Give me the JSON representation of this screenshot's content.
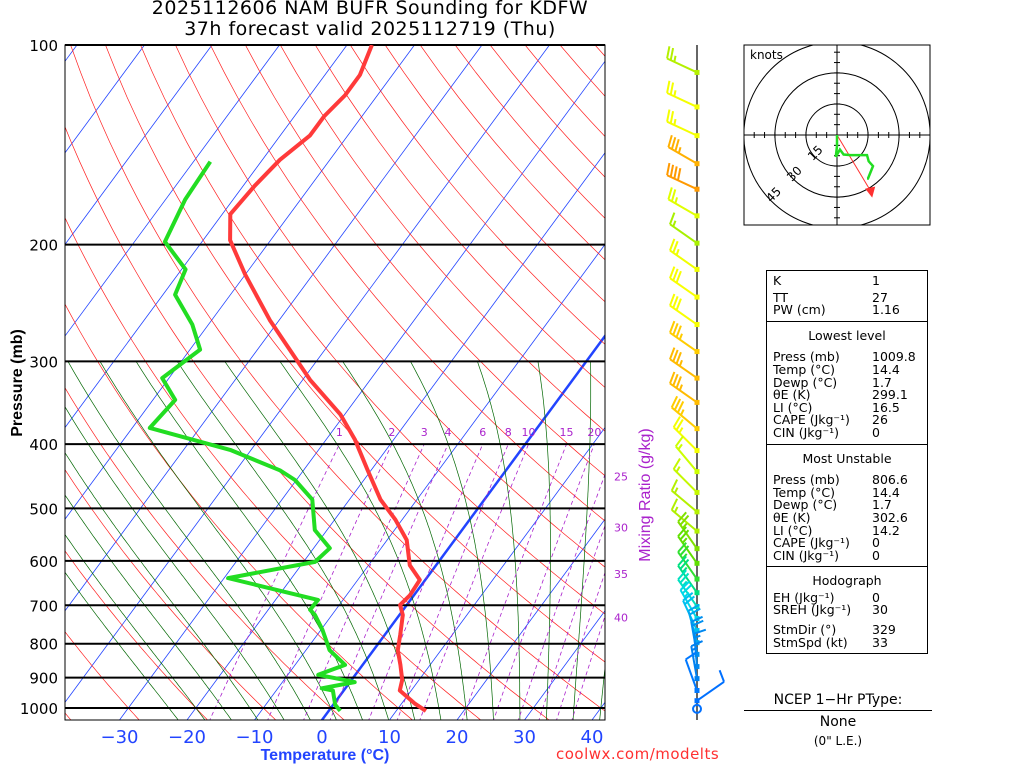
{
  "header": {
    "line1": "2025112606 NAM BUFR Sounding for KDFW",
    "line2": "37h forecast valid 2025112719 (Thu)"
  },
  "credit": "coolwx.com/modelts",
  "chart_data": {
    "type": "skew-t",
    "title": "2025112606 NAM BUFR Sounding for KDFW",
    "xlabel": "Temperature (°C)",
    "ylabel": "Pressure (mb)",
    "y2label": "Mixing Ratio (g/kg)",
    "pressure_ticks": [
      100,
      200,
      300,
      400,
      500,
      600,
      700,
      800,
      900,
      1000
    ],
    "temperature_ticks": [
      -30,
      -20,
      -10,
      0,
      10,
      20,
      30,
      40
    ],
    "temperature_tick_labels": [
      "−30",
      "−20",
      "−10",
      "0",
      "10",
      "20",
      "30",
      "40"
    ],
    "mixing_ratio_lines": [
      1,
      2,
      3,
      4,
      6,
      8,
      10,
      15,
      20,
      25,
      30,
      35,
      40
    ],
    "plim": [
      100,
      1043
    ],
    "colors": {
      "temperature": "#ff3a3a",
      "dewpoint": "#22dd22",
      "isotherm": "#2244ff",
      "dry_adiabat": "#ff2020",
      "moist_adiabat": "#006600",
      "mixing_ratio": "#aa22cc"
    },
    "temperature": [
      [
        1010,
        14.4
      ],
      [
        984,
        11.9
      ],
      [
        941,
        8.3
      ],
      [
        907,
        7.5
      ],
      [
        861,
        5.6
      ],
      [
        818,
        3.6
      ],
      [
        776,
        2.3
      ],
      [
        724,
        0.5
      ],
      [
        699,
        -1.0
      ],
      [
        676,
        -0.6
      ],
      [
        641,
        -0.8
      ],
      [
        609,
        -3.9
      ],
      [
        558,
        -7.1
      ],
      [
        520,
        -11.0
      ],
      [
        485,
        -15.4
      ],
      [
        438,
        -20.5
      ],
      [
        394,
        -25.7
      ],
      [
        361,
        -30.6
      ],
      [
        320,
        -38.9
      ],
      [
        260,
        -51.4
      ],
      [
        222,
        -60.0
      ],
      [
        197,
        -66.0
      ],
      [
        180,
        -68.8
      ],
      [
        163,
        -68.3
      ],
      [
        149,
        -67.4
      ],
      [
        137,
        -65.6
      ],
      [
        128,
        -65.6
      ],
      [
        119,
        -64.8
      ],
      [
        111,
        -64.8
      ],
      [
        100,
        -66.3
      ]
    ],
    "dewpoint": [
      [
        1010,
        1.7
      ],
      [
        989,
        0.3
      ],
      [
        941,
        -1.6
      ],
      [
        934,
        -3.5
      ],
      [
        914,
        0.7
      ],
      [
        891,
        -5.5
      ],
      [
        861,
        -2.6
      ],
      [
        818,
        -6.5
      ],
      [
        762,
        -9.8
      ],
      [
        724,
        -12.5
      ],
      [
        711,
        -13.8
      ],
      [
        687,
        -13.7
      ],
      [
        637,
        -29.4
      ],
      [
        602,
        -18.3
      ],
      [
        574,
        -17.6
      ],
      [
        539,
        -21.8
      ],
      [
        485,
        -25.5
      ],
      [
        453,
        -30.2
      ],
      [
        438,
        -33.5
      ],
      [
        408,
        -43.1
      ],
      [
        378,
        -57.4
      ],
      [
        343,
        -56.7
      ],
      [
        318,
        -61.0
      ],
      [
        288,
        -58.5
      ],
      [
        264,
        -62.4
      ],
      [
        238,
        -68.2
      ],
      [
        218,
        -69.4
      ],
      [
        198,
        -75.5
      ],
      [
        171,
        -77.1
      ],
      [
        150,
        -77.5
      ]
    ],
    "winds": [
      {
        "p": 110,
        "dir": 295,
        "spd": 25,
        "color": "#b4f000"
      },
      {
        "p": 124,
        "dir": 295,
        "spd": 25,
        "color": "#f4ff00"
      },
      {
        "p": 137,
        "dir": 295,
        "spd": 25,
        "color": "#f4ff00"
      },
      {
        "p": 151,
        "dir": 300,
        "spd": 35,
        "color": "#ffb000"
      },
      {
        "p": 165,
        "dir": 295,
        "spd": 40,
        "color": "#ff9900"
      },
      {
        "p": 181,
        "dir": 300,
        "spd": 25,
        "color": "#e0ff00"
      },
      {
        "p": 199,
        "dir": 305,
        "spd": 15,
        "color": "#a8f000"
      },
      {
        "p": 218,
        "dir": 305,
        "spd": 25,
        "color": "#f0ff00"
      },
      {
        "p": 240,
        "dir": 305,
        "spd": 30,
        "color": "#f8ff00"
      },
      {
        "p": 264,
        "dir": 305,
        "spd": 30,
        "color": "#f8ff00"
      },
      {
        "p": 290,
        "dir": 305,
        "spd": 35,
        "color": "#ffcc00"
      },
      {
        "p": 318,
        "dir": 305,
        "spd": 35,
        "color": "#ffbb00"
      },
      {
        "p": 346,
        "dir": 305,
        "spd": 35,
        "color": "#ffbb00"
      },
      {
        "p": 379,
        "dir": 310,
        "spd": 35,
        "color": "#ffcc00"
      },
      {
        "p": 409,
        "dir": 315,
        "spd": 25,
        "color": "#f4ff00"
      },
      {
        "p": 440,
        "dir": 320,
        "spd": 15,
        "color": "#ccff00"
      },
      {
        "p": 473,
        "dir": 315,
        "spd": 15,
        "color": "#c4f800"
      },
      {
        "p": 506,
        "dir": 310,
        "spd": 15,
        "color": "#b4f000"
      },
      {
        "p": 541,
        "dir": 310,
        "spd": 15,
        "color": "#b0f000"
      },
      {
        "p": 575,
        "dir": 325,
        "spd": 25,
        "color": "#80e000"
      },
      {
        "p": 605,
        "dir": 325,
        "spd": 25,
        "color": "#60e000"
      },
      {
        "p": 639,
        "dir": 325,
        "spd": 25,
        "color": "#30e030"
      },
      {
        "p": 670,
        "dir": 325,
        "spd": 25,
        "color": "#00e080"
      },
      {
        "p": 703,
        "dir": 325,
        "spd": 25,
        "color": "#00e0c0"
      },
      {
        "p": 733,
        "dir": 330,
        "spd": 25,
        "color": "#00d8e8"
      },
      {
        "p": 764,
        "dir": 335,
        "spd": 20,
        "color": "#00c0f0"
      },
      {
        "p": 797,
        "dir": 345,
        "spd": 20,
        "color": "#00a8f0"
      },
      {
        "p": 830,
        "dir": 350,
        "spd": 20,
        "color": "#0090f0"
      },
      {
        "p": 866,
        "dir": 355,
        "spd": 15,
        "color": "#0088f0"
      },
      {
        "p": 903,
        "dir": 350,
        "spd": 15,
        "color": "#0080f0"
      },
      {
        "p": 941,
        "dir": 340,
        "spd": 10,
        "color": "#0078ff"
      },
      {
        "p": 975,
        "dir": 55,
        "spd": 10,
        "color": "#0070ff"
      },
      {
        "p": 1003,
        "dir": 0,
        "spd": 0,
        "color": "#0070ff"
      }
    ],
    "hodograph": {
      "label": "knots",
      "rings": [
        15,
        30,
        45
      ],
      "ring_labels": [
        "15",
        "30",
        "45"
      ],
      "uv": [
        [
          0,
          0
        ],
        [
          0,
          -5.3
        ],
        [
          -0.6,
          -10.6
        ],
        [
          1.4,
          -7
        ],
        [
          3.2,
          -9.4
        ],
        [
          6.5,
          -9.7
        ],
        [
          14.5,
          -9.7
        ],
        [
          15.3,
          -12.7
        ],
        [
          17.4,
          -15
        ],
        [
          15,
          -21
        ],
        [
          14.5,
          -21
        ]
      ],
      "storm_motion_uv": [
        17.0,
        -28.3
      ]
    }
  },
  "stats": {
    "top": [
      {
        "k": "K",
        "v": "1"
      },
      {
        "k": "TT",
        "v": "27"
      },
      {
        "k": "PW (cm)",
        "v": "1.16"
      }
    ],
    "lowest": {
      "title": "Lowest level",
      "rows": [
        {
          "k": "Press (mb)",
          "v": "1009.8"
        },
        {
          "k": "Temp (°C)",
          "v": "14.4"
        },
        {
          "k": "Dewp (°C)",
          "v": "1.7"
        },
        {
          "k": "θE (K)",
          "v": "299.1"
        },
        {
          "k": "LI (°C)",
          "v": "16.5"
        },
        {
          "k": "CAPE (Jkg⁻¹)",
          "v": "26"
        },
        {
          "k": "CIN (Jkg⁻¹)",
          "v": "0"
        }
      ]
    },
    "unstable": {
      "title": "Most Unstable",
      "rows": [
        {
          "k": "Press (mb)",
          "v": "806.6"
        },
        {
          "k": "Temp (°C)",
          "v": "14.4"
        },
        {
          "k": "Dewp (°C)",
          "v": "1.7"
        },
        {
          "k": "θE (K)",
          "v": "302.6"
        },
        {
          "k": "LI (°C)",
          "v": "14.2"
        },
        {
          "k": "CAPE (Jkg⁻¹)",
          "v": "0"
        },
        {
          "k": "CIN (Jkg⁻¹)",
          "v": "0"
        }
      ]
    },
    "hodograph": {
      "title": "Hodograph",
      "rows": [
        {
          "k": "EH (Jkg⁻¹)",
          "v": "0"
        },
        {
          "k": "SREH (Jkg⁻¹)",
          "v": "30"
        },
        {
          "k": "StmDir (°)",
          "v": "329"
        },
        {
          "k": "StmSpd (kt)",
          "v": "33"
        }
      ]
    }
  },
  "ptype": {
    "heading": "NCEP 1−Hr PType:",
    "value": "None",
    "accum": "(0\" L.E.)"
  }
}
